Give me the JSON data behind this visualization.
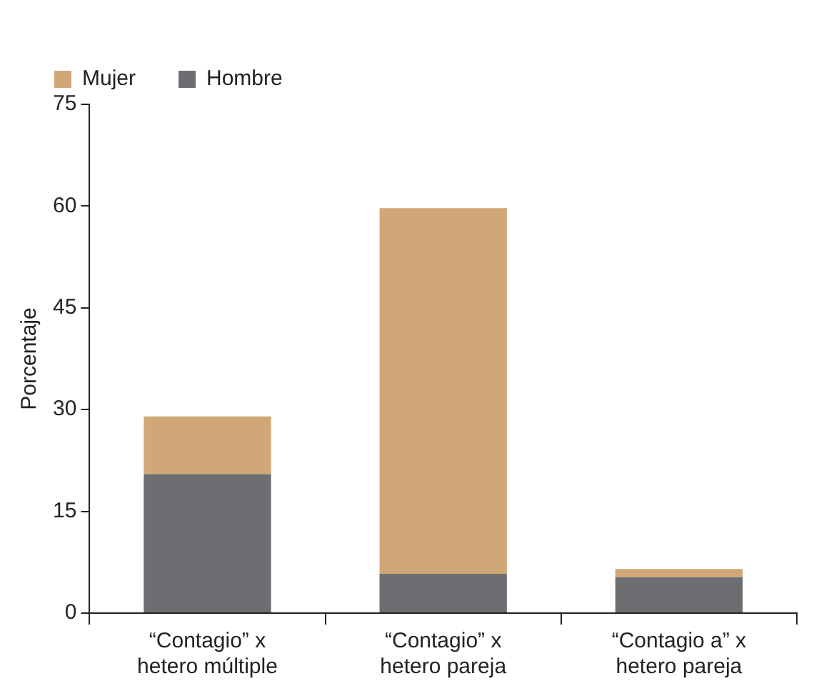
{
  "chart_data": {
    "type": "bar",
    "ylabel": "Porcentaje",
    "stacked": true,
    "legend": "top left",
    "grid": false,
    "categories": [
      "“Contagio” x hetero múltiple",
      "“Contagio” x hetero pareja",
      "“Contagio a” x hetero pareja"
    ],
    "series": [
      {
        "name": "Hombre",
        "color": "#6d6e71",
        "values": [
          20.5,
          5.8,
          5.3
        ]
      },
      {
        "name": "Mujer",
        "color": "#d2a777",
        "values": [
          8.5,
          53.9,
          1.2
        ]
      }
    ],
    "ylim": [
      0,
      75
    ],
    "yticks": [
      0,
      15,
      30,
      45,
      60,
      75
    ]
  }
}
